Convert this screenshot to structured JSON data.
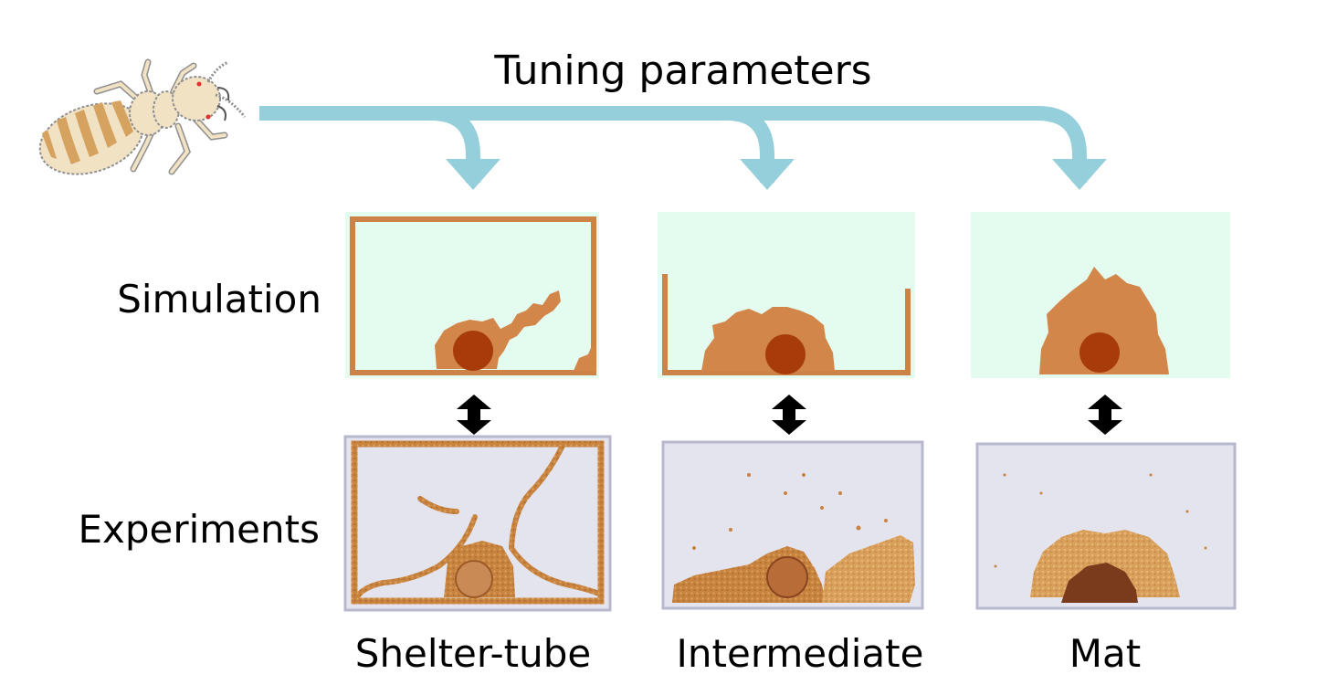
{
  "title": "Tuning parameters",
  "row_labels": {
    "simulation": "Simulation",
    "experiments": "Experiments"
  },
  "columns": [
    {
      "name": "Shelter-tube"
    },
    {
      "name": "Intermediate"
    },
    {
      "name": "Mat"
    }
  ],
  "colors": {
    "arrow": "#95cfdc",
    "sim_background": "#e4fbf0",
    "structure": "#d3864a",
    "wall": "#cd8347",
    "food": "#a73b0a",
    "tank_background": "#e4e4ef",
    "termite_body": "#f1e2c4",
    "termite_stripes": "#d6a260"
  }
}
